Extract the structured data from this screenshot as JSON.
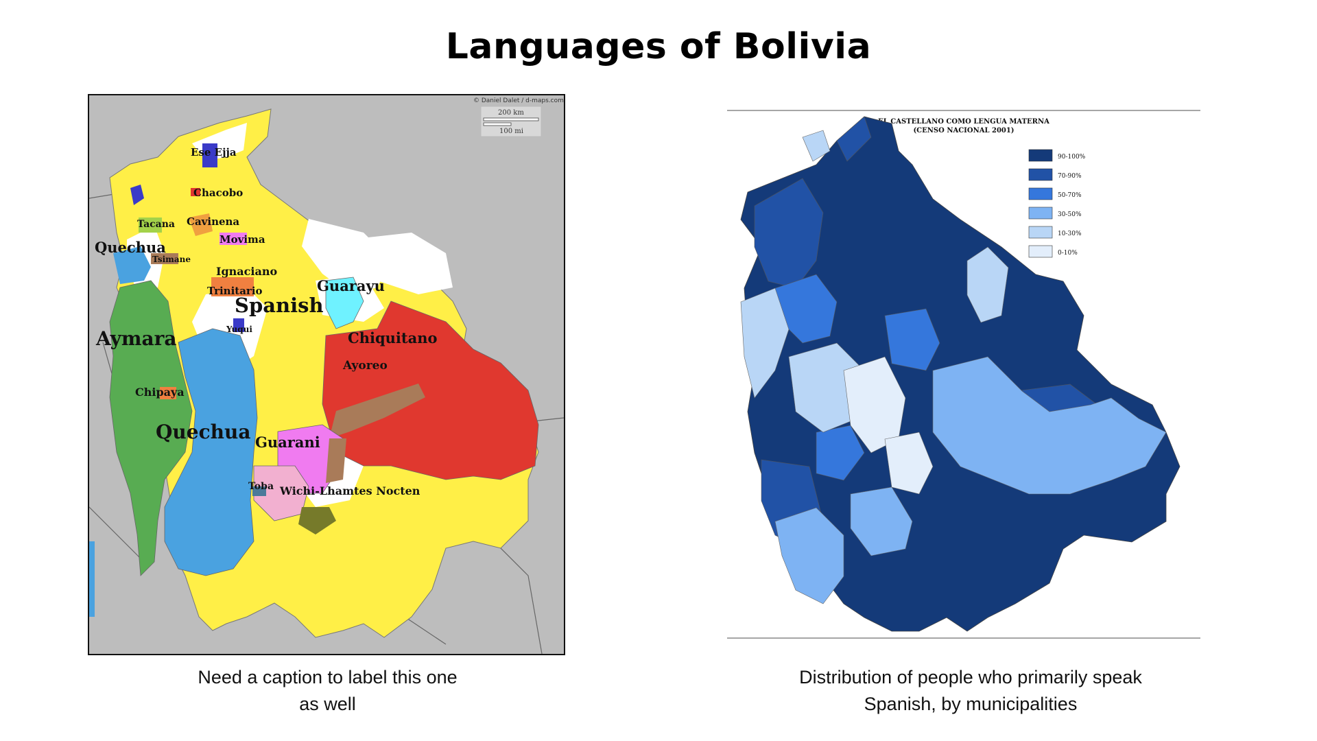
{
  "slide": {
    "title": "Languages of Bolivia"
  },
  "map_languages": {
    "credit": "© Daniel Dalet / d-maps.com",
    "scale_km": "200 km",
    "scale_mi": "100 mi",
    "labels": {
      "ese_ejja": "Ese Ejja",
      "chacobo": "Chacobo",
      "tacana": "Tacana",
      "cavinena": "Cavinena",
      "movima": "Movima",
      "quechua_north": "Quechua",
      "tsimane": "Tsimane",
      "ignaciano": "Ignaciano",
      "trinitario": "Trinitario",
      "guarayu": "Guarayu",
      "spanish": "Spanish",
      "yuqui": "Yuqui",
      "chiquitano": "Chiquitano",
      "aymara": "Aymara",
      "ayoreo": "Ayoreo",
      "chipaya": "Chipaya",
      "quechua_south": "Quechua",
      "guarani": "Guarani",
      "toba": "Toba",
      "wichi": "Wichi-Lhamtes Nocten"
    },
    "colors": {
      "spanish": "#ffef47",
      "aymara": "#58ac52",
      "quechua": "#4aa2e0",
      "chiquitano": "#e0382f",
      "guarayu": "#6ff2ff",
      "guarani": "#f07bf0",
      "ayoreo": "#a97b59",
      "background": "#bdbdbd"
    }
  },
  "map_spanish": {
    "title_line1": "EL CASTELLANO COMO LENGUA MATERNA",
    "title_line2": "(CENSO NACIONAL 2001)",
    "legend": [
      {
        "label": "90-100%",
        "color": "#143a79"
      },
      {
        "label": "70-90%",
        "color": "#2152a6"
      },
      {
        "label": "50-70%",
        "color": "#3577dc"
      },
      {
        "label": "30-50%",
        "color": "#7eb3f3"
      },
      {
        "label": "10-30%",
        "color": "#b9d6f6"
      },
      {
        "label": "0-10%",
        "color": "#e3eefb"
      }
    ]
  },
  "captions": {
    "left_line1": "Need a caption to label this one",
    "left_line2": "as well",
    "right_line1": "Distribution of people who primarily speak",
    "right_line2": "Spanish, by municipalities"
  }
}
